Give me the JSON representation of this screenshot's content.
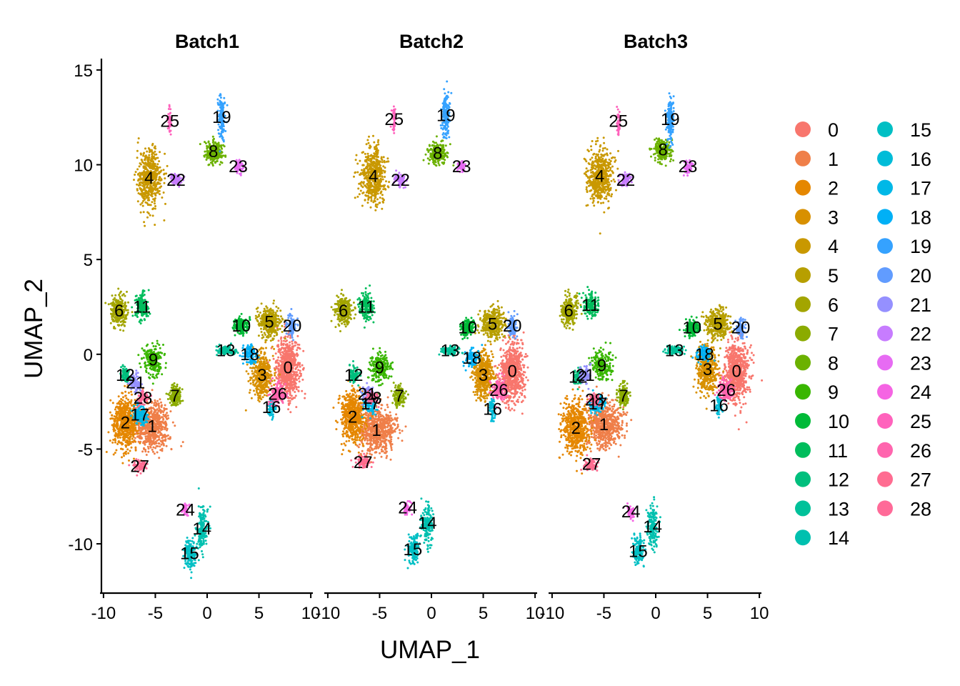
{
  "chart_data": {
    "type": "scatter",
    "xlabel": "UMAP_1",
    "ylabel": "UMAP_2",
    "xlim": [
      -10.2,
      10.2
    ],
    "ylim": [
      -12.6,
      15.6
    ],
    "x_ticks": [
      -10,
      -5,
      0,
      5,
      10
    ],
    "y_ticks": [
      15,
      10,
      5,
      0,
      -5,
      -10
    ],
    "x_tick_labels": [
      "-10",
      "-5",
      "0",
      "5",
      "10"
    ],
    "y_tick_labels": [
      "15",
      "10",
      "5",
      "0",
      "-5",
      "-10"
    ],
    "grid": false,
    "legend_placement": "right",
    "legend_columns": 2,
    "cluster_ids": [
      "0",
      "1",
      "2",
      "3",
      "4",
      "5",
      "6",
      "7",
      "8",
      "9",
      "10",
      "11",
      "12",
      "13",
      "14",
      "15",
      "16",
      "17",
      "18",
      "19",
      "20",
      "21",
      "22",
      "23",
      "24",
      "25",
      "26",
      "27",
      "28"
    ],
    "cluster_colors": [
      "#F8766D",
      "#EF7F49",
      "#E58700",
      "#D89000",
      "#C99800",
      "#B79F00",
      "#A3A500",
      "#8BAB00",
      "#6BB100",
      "#39B600",
      "#00BA38",
      "#00BD5C",
      "#00BF7D",
      "#00C19A",
      "#00C0AF",
      "#00BFC4",
      "#00BCD8",
      "#00B8E7",
      "#00B0F6",
      "#35A2FF",
      "#619CFF",
      "#9590FF",
      "#C77CFF",
      "#E76BF3",
      "#F564E3",
      "#FF62BC",
      "#FF65AE",
      "#FF6C91",
      "#FF6A98"
    ],
    "panels": [
      {
        "title": "Batch1",
        "clusters": [
          {
            "id": "0",
            "x": 7.8,
            "y": -0.7
          },
          {
            "id": "1",
            "x": -5.3,
            "y": -3.8
          },
          {
            "id": "2",
            "x": -7.9,
            "y": -3.6
          },
          {
            "id": "3",
            "x": 5.3,
            "y": -1.1
          },
          {
            "id": "4",
            "x": -5.6,
            "y": 9.3
          },
          {
            "id": "5",
            "x": 6.0,
            "y": 1.7
          },
          {
            "id": "6",
            "x": -8.5,
            "y": 2.3
          },
          {
            "id": "7",
            "x": -3.1,
            "y": -2.2
          },
          {
            "id": "8",
            "x": 0.6,
            "y": 10.7
          },
          {
            "id": "9",
            "x": -5.2,
            "y": -0.3
          },
          {
            "id": "10",
            "x": 3.3,
            "y": 1.5
          },
          {
            "id": "11",
            "x": -6.3,
            "y": 2.5
          },
          {
            "id": "12",
            "x": -7.9,
            "y": -1.1
          },
          {
            "id": "13",
            "x": 1.8,
            "y": 0.2
          },
          {
            "id": "14",
            "x": -0.5,
            "y": -9.2
          },
          {
            "id": "15",
            "x": -1.7,
            "y": -10.5
          },
          {
            "id": "16",
            "x": 6.2,
            "y": -2.8
          },
          {
            "id": "17",
            "x": -6.5,
            "y": -3.2
          },
          {
            "id": "18",
            "x": 4.1,
            "y": 0.0
          },
          {
            "id": "19",
            "x": 1.4,
            "y": 12.5
          },
          {
            "id": "20",
            "x": 8.2,
            "y": 1.5
          },
          {
            "id": "21",
            "x": -6.9,
            "y": -1.5
          },
          {
            "id": "22",
            "x": -3.0,
            "y": 9.2
          },
          {
            "id": "23",
            "x": 3.0,
            "y": 9.9
          },
          {
            "id": "24",
            "x": -2.1,
            "y": -8.2
          },
          {
            "id": "25",
            "x": -3.6,
            "y": 12.3
          },
          {
            "id": "26",
            "x": 6.8,
            "y": -2.1
          },
          {
            "id": "27",
            "x": -6.5,
            "y": -5.9
          },
          {
            "id": "28",
            "x": -6.2,
            "y": -2.3
          }
        ]
      },
      {
        "title": "Batch2",
        "clusters": [
          {
            "id": "0",
            "x": 7.8,
            "y": -0.9
          },
          {
            "id": "1",
            "x": -5.3,
            "y": -4.0
          },
          {
            "id": "2",
            "x": -7.6,
            "y": -3.3
          },
          {
            "id": "3",
            "x": 5.0,
            "y": -1.1
          },
          {
            "id": "4",
            "x": -5.6,
            "y": 9.4
          },
          {
            "id": "5",
            "x": 5.9,
            "y": 1.6
          },
          {
            "id": "6",
            "x": -8.5,
            "y": 2.3
          },
          {
            "id": "7",
            "x": -3.1,
            "y": -2.2
          },
          {
            "id": "8",
            "x": 0.6,
            "y": 10.6
          },
          {
            "id": "9",
            "x": -5.0,
            "y": -0.7
          },
          {
            "id": "10",
            "x": 3.5,
            "y": 1.4
          },
          {
            "id": "11",
            "x": -6.3,
            "y": 2.5
          },
          {
            "id": "12",
            "x": -7.5,
            "y": -1.1
          },
          {
            "id": "13",
            "x": 1.8,
            "y": 0.2
          },
          {
            "id": "14",
            "x": -0.4,
            "y": -8.9
          },
          {
            "id": "15",
            "x": -1.8,
            "y": -10.3
          },
          {
            "id": "16",
            "x": 5.9,
            "y": -2.9
          },
          {
            "id": "17",
            "x": -5.9,
            "y": -2.6
          },
          {
            "id": "18",
            "x": 3.9,
            "y": -0.2
          },
          {
            "id": "19",
            "x": 1.4,
            "y": 12.6
          },
          {
            "id": "20",
            "x": 7.8,
            "y": 1.5
          },
          {
            "id": "21",
            "x": -6.2,
            "y": -2.1
          },
          {
            "id": "22",
            "x": -3.0,
            "y": 9.2
          },
          {
            "id": "23",
            "x": 2.9,
            "y": 9.9
          },
          {
            "id": "24",
            "x": -2.3,
            "y": -8.1
          },
          {
            "id": "25",
            "x": -3.6,
            "y": 12.4
          },
          {
            "id": "26",
            "x": 6.5,
            "y": -1.9
          },
          {
            "id": "27",
            "x": -6.6,
            "y": -5.7
          },
          {
            "id": "28",
            "x": -5.7,
            "y": -2.3
          }
        ]
      },
      {
        "title": "Batch3",
        "clusters": [
          {
            "id": "0",
            "x": 7.8,
            "y": -0.9
          },
          {
            "id": "1",
            "x": -5.0,
            "y": -3.7
          },
          {
            "id": "2",
            "x": -7.7,
            "y": -3.9
          },
          {
            "id": "3",
            "x": 5.0,
            "y": -0.8
          },
          {
            "id": "4",
            "x": -5.4,
            "y": 9.4
          },
          {
            "id": "5",
            "x": 6.0,
            "y": 1.6
          },
          {
            "id": "6",
            "x": -8.4,
            "y": 2.3
          },
          {
            "id": "7",
            "x": -3.1,
            "y": -2.2
          },
          {
            "id": "8",
            "x": 0.7,
            "y": 10.8
          },
          {
            "id": "9",
            "x": -5.2,
            "y": -0.6
          },
          {
            "id": "10",
            "x": 3.5,
            "y": 1.4
          },
          {
            "id": "11",
            "x": -6.3,
            "y": 2.6
          },
          {
            "id": "12",
            "x": -7.5,
            "y": -1.2
          },
          {
            "id": "13",
            "x": 1.8,
            "y": 0.2
          },
          {
            "id": "14",
            "x": -0.3,
            "y": -9.1
          },
          {
            "id": "15",
            "x": -1.7,
            "y": -10.4
          },
          {
            "id": "16",
            "x": 6.1,
            "y": -2.7
          },
          {
            "id": "17",
            "x": -5.6,
            "y": -2.6
          },
          {
            "id": "18",
            "x": 4.7,
            "y": 0.0
          },
          {
            "id": "19",
            "x": 1.4,
            "y": 12.4
          },
          {
            "id": "20",
            "x": 8.2,
            "y": 1.4
          },
          {
            "id": "21",
            "x": -6.8,
            "y": -1.1
          },
          {
            "id": "22",
            "x": -2.9,
            "y": 9.2
          },
          {
            "id": "23",
            "x": 3.1,
            "y": 9.9
          },
          {
            "id": "24",
            "x": -2.4,
            "y": -8.3
          },
          {
            "id": "25",
            "x": -3.6,
            "y": 12.3
          },
          {
            "id": "26",
            "x": 6.8,
            "y": -1.9
          },
          {
            "id": "27",
            "x": -6.2,
            "y": -5.8
          },
          {
            "id": "28",
            "x": -5.9,
            "y": -2.4
          }
        ]
      }
    ]
  }
}
